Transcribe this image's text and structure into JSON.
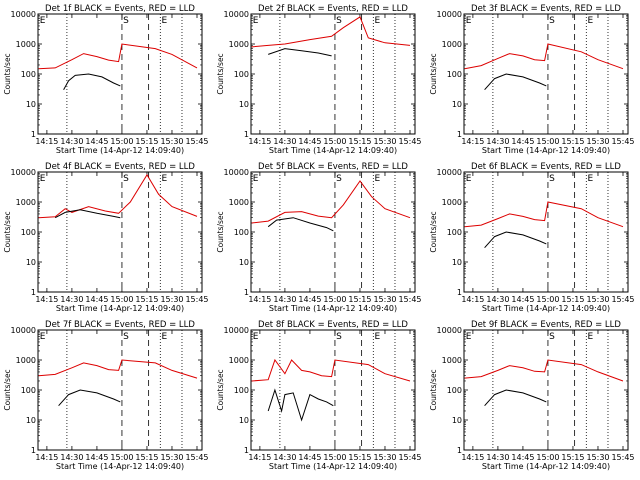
{
  "chart_data": [
    {
      "type": "line",
      "title": "Det 1f BLACK = Events, RED = LLD",
      "xlabel": "Start Time (14-Apr-12 14:09:40)",
      "ylabel": "Counts/sec",
      "x_ticks": [
        "14:15",
        "14:30",
        "14:45",
        "15:00",
        "15:15",
        "15:30",
        "15:45"
      ],
      "y_ticks": [
        "1",
        "10",
        "100",
        "1000",
        "10000"
      ],
      "yscale": "log",
      "ylim": [
        1,
        10000
      ],
      "markers": [
        {
          "label": "E",
          "at": "14:10"
        },
        {
          "label": "S",
          "at": "15:00"
        },
        {
          "label": "E",
          "at": "15:23"
        }
      ],
      "series": [
        {
          "color": "#dd0000",
          "points": [
            [
              "14:10",
              150
            ],
            [
              "14:20",
              160
            ],
            [
              "14:30",
              300
            ],
            [
              "14:37",
              480
            ],
            [
              "14:45",
              380
            ],
            [
              "14:52",
              290
            ],
            [
              "14:58",
              260
            ],
            [
              "15:00",
              1000
            ],
            [
              "15:20",
              700
            ],
            [
              "15:30",
              450
            ],
            [
              "15:45",
              160
            ]
          ]
        },
        {
          "color": "#000000",
          "points": [
            [
              "14:25",
              30
            ],
            [
              "14:28",
              60
            ],
            [
              "14:32",
              90
            ],
            [
              "14:40",
              100
            ],
            [
              "14:48",
              80
            ],
            [
              "14:55",
              50
            ],
            [
              "14:59",
              40
            ]
          ]
        }
      ]
    },
    {
      "type": "line",
      "title": "Det 2f BLACK = Events, RED = LLD",
      "xlabel": "Start Time (14-Apr-12 14:09:40)",
      "ylabel": "Counts/sec",
      "x_ticks": [
        "14:15",
        "14:30",
        "14:45",
        "15:00",
        "15:15",
        "15:30",
        "15:45"
      ],
      "y_ticks": [
        "1",
        "10",
        "100",
        "1000",
        "10000"
      ],
      "yscale": "log",
      "ylim": [
        1,
        10000
      ],
      "markers": [
        {
          "label": "E",
          "at": "14:10"
        },
        {
          "label": "S",
          "at": "15:00"
        },
        {
          "label": "E",
          "at": "15:23"
        }
      ],
      "series": [
        {
          "color": "#dd0000",
          "points": [
            [
              "14:10",
              800
            ],
            [
              "14:20",
              900
            ],
            [
              "14:30",
              1000
            ],
            [
              "14:45",
              1400
            ],
            [
              "14:58",
              1800
            ],
            [
              "15:05",
              3500
            ],
            [
              "15:15",
              8000
            ],
            [
              "15:20",
              1600
            ],
            [
              "15:30",
              1100
            ],
            [
              "15:45",
              900
            ]
          ]
        },
        {
          "color": "#000000",
          "points": [
            [
              "14:20",
              450
            ],
            [
              "14:30",
              700
            ],
            [
              "14:40",
              600
            ],
            [
              "14:50",
              500
            ],
            [
              "14:58",
              400
            ]
          ]
        }
      ]
    },
    {
      "type": "line",
      "title": "Det 3f BLACK = Events, RED = LLD",
      "xlabel": "Start Time (14-Apr-12 14:09:40)",
      "ylabel": "Counts/sec",
      "x_ticks": [
        "14:15",
        "14:30",
        "14:45",
        "15:00",
        "15:15",
        "15:30",
        "15:45"
      ],
      "y_ticks": [
        "1",
        "10",
        "100",
        "1000",
        "10000"
      ],
      "yscale": "log",
      "ylim": [
        1,
        10000
      ],
      "markers": [
        {
          "label": "E",
          "at": "14:10"
        },
        {
          "label": "S",
          "at": "15:00"
        },
        {
          "label": "E",
          "at": "15:23"
        }
      ],
      "series": [
        {
          "color": "#dd0000",
          "points": [
            [
              "14:10",
              150
            ],
            [
              "14:20",
              190
            ],
            [
              "14:30",
              330
            ],
            [
              "14:37",
              480
            ],
            [
              "14:45",
              400
            ],
            [
              "14:52",
              300
            ],
            [
              "14:58",
              280
            ],
            [
              "15:00",
              1000
            ],
            [
              "15:20",
              550
            ],
            [
              "15:30",
              300
            ],
            [
              "15:45",
              150
            ]
          ]
        },
        {
          "color": "#000000",
          "points": [
            [
              "14:22",
              30
            ],
            [
              "14:28",
              70
            ],
            [
              "14:35",
              100
            ],
            [
              "14:45",
              80
            ],
            [
              "14:55",
              50
            ],
            [
              "14:59",
              40
            ]
          ]
        }
      ]
    },
    {
      "type": "line",
      "title": "Det 4f BLACK = Events, RED = LLD",
      "xlabel": "Start Time (14-Apr-12 14:09:40)",
      "ylabel": "Counts/sec",
      "x_ticks": [
        "14:15",
        "14:30",
        "14:45",
        "15:00",
        "15:15",
        "15:30",
        "15:45"
      ],
      "y_ticks": [
        "1",
        "10",
        "100",
        "1000",
        "10000"
      ],
      "yscale": "log",
      "ylim": [
        1,
        10000
      ],
      "markers": [
        {
          "label": "E",
          "at": "14:10"
        },
        {
          "label": "S",
          "at": "15:00"
        },
        {
          "label": "E",
          "at": "15:23"
        }
      ],
      "series": [
        {
          "color": "#dd0000",
          "points": [
            [
              "14:10",
              300
            ],
            [
              "14:20",
              320
            ],
            [
              "14:26",
              600
            ],
            [
              "14:30",
              450
            ],
            [
              "14:40",
              700
            ],
            [
              "14:50",
              500
            ],
            [
              "14:58",
              420
            ],
            [
              "15:05",
              1000
            ],
            [
              "15:15",
              8000
            ],
            [
              "15:22",
              1800
            ],
            [
              "15:30",
              700
            ],
            [
              "15:45",
              330
            ]
          ]
        },
        {
          "color": "#000000",
          "points": [
            [
              "14:20",
              300
            ],
            [
              "14:26",
              450
            ],
            [
              "14:35",
              550
            ],
            [
              "14:45",
              420
            ],
            [
              "14:55",
              330
            ],
            [
              "14:59",
              300
            ]
          ]
        }
      ]
    },
    {
      "type": "line",
      "title": "Det 5f BLACK = Events, RED = LLD",
      "xlabel": "Start Time (14-Apr-12 14:09:40)",
      "ylabel": "Counts/sec",
      "x_ticks": [
        "14:15",
        "14:30",
        "14:45",
        "15:00",
        "15:15",
        "15:30",
        "15:45"
      ],
      "y_ticks": [
        "1",
        "10",
        "100",
        "1000",
        "10000"
      ],
      "yscale": "log",
      "ylim": [
        1,
        10000
      ],
      "markers": [
        {
          "label": "E",
          "at": "14:10"
        },
        {
          "label": "S",
          "at": "15:00"
        },
        {
          "label": "E",
          "at": "15:23"
        }
      ],
      "series": [
        {
          "color": "#dd0000",
          "points": [
            [
              "14:10",
              200
            ],
            [
              "14:20",
              230
            ],
            [
              "14:30",
              450
            ],
            [
              "14:40",
              480
            ],
            [
              "14:50",
              340
            ],
            [
              "14:58",
              300
            ],
            [
              "15:05",
              800
            ],
            [
              "15:15",
              5000
            ],
            [
              "15:22",
              1500
            ],
            [
              "15:30",
              600
            ],
            [
              "15:45",
              300
            ]
          ]
        },
        {
          "color": "#000000",
          "points": [
            [
              "14:20",
              150
            ],
            [
              "14:25",
              250
            ],
            [
              "14:35",
              300
            ],
            [
              "14:45",
              200
            ],
            [
              "14:55",
              140
            ],
            [
              "14:59",
              110
            ]
          ]
        }
      ]
    },
    {
      "type": "line",
      "title": "Det 6f BLACK = Events, RED = LLD",
      "xlabel": "Start Time (14-Apr-12 14:09:40)",
      "ylabel": "Counts/sec",
      "x_ticks": [
        "14:15",
        "14:30",
        "14:45",
        "15:00",
        "15:15",
        "15:30",
        "15:45"
      ],
      "y_ticks": [
        "1",
        "10",
        "100",
        "1000",
        "10000"
      ],
      "yscale": "log",
      "ylim": [
        1,
        10000
      ],
      "markers": [
        {
          "label": "E",
          "at": "14:10"
        },
        {
          "label": "S",
          "at": "15:00"
        },
        {
          "label": "E",
          "at": "15:23"
        }
      ],
      "series": [
        {
          "color": "#dd0000",
          "points": [
            [
              "14:10",
              150
            ],
            [
              "14:20",
              170
            ],
            [
              "14:30",
              280
            ],
            [
              "14:37",
              400
            ],
            [
              "14:45",
              330
            ],
            [
              "14:52",
              260
            ],
            [
              "14:58",
              240
            ],
            [
              "15:00",
              1000
            ],
            [
              "15:20",
              600
            ],
            [
              "15:30",
              300
            ],
            [
              "15:45",
              150
            ]
          ]
        },
        {
          "color": "#000000",
          "points": [
            [
              "14:22",
              30
            ],
            [
              "14:28",
              70
            ],
            [
              "14:35",
              100
            ],
            [
              "14:45",
              80
            ],
            [
              "14:55",
              50
            ],
            [
              "14:59",
              40
            ]
          ]
        }
      ]
    },
    {
      "type": "line",
      "title": "Det 7f BLACK = Events, RED = LLD",
      "xlabel": "Start Time (14-Apr-12 14:09:40)",
      "ylabel": "Counts/sec",
      "x_ticks": [
        "14:15",
        "14:30",
        "14:45",
        "15:00",
        "15:15",
        "15:30",
        "15:45"
      ],
      "y_ticks": [
        "1",
        "10",
        "100",
        "1000",
        "10000"
      ],
      "yscale": "log",
      "ylim": [
        1,
        10000
      ],
      "markers": [
        {
          "label": "E",
          "at": "14:10"
        },
        {
          "label": "S",
          "at": "15:00"
        },
        {
          "label": "E",
          "at": "15:23"
        }
      ],
      "series": [
        {
          "color": "#dd0000",
          "points": [
            [
              "14:10",
              300
            ],
            [
              "14:20",
              330
            ],
            [
              "14:30",
              550
            ],
            [
              "14:37",
              800
            ],
            [
              "14:45",
              650
            ],
            [
              "14:52",
              480
            ],
            [
              "14:58",
              450
            ],
            [
              "15:00",
              1000
            ],
            [
              "15:20",
              800
            ],
            [
              "15:30",
              450
            ],
            [
              "15:45",
              250
            ]
          ]
        },
        {
          "color": "#000000",
          "points": [
            [
              "14:22",
              30
            ],
            [
              "14:28",
              70
            ],
            [
              "14:35",
              100
            ],
            [
              "14:45",
              80
            ],
            [
              "14:55",
              50
            ],
            [
              "14:59",
              40
            ]
          ]
        }
      ]
    },
    {
      "type": "line",
      "title": "Det 8f BLACK = Events, RED = LLD",
      "xlabel": "Start Time (14-Apr-12 14:09:40)",
      "ylabel": "Counts/sec",
      "x_ticks": [
        "14:15",
        "14:30",
        "14:45",
        "15:00",
        "15:15",
        "15:30",
        "15:45"
      ],
      "y_ticks": [
        "1",
        "10",
        "100",
        "1000",
        "10000"
      ],
      "yscale": "log",
      "ylim": [
        1,
        10000
      ],
      "markers": [
        {
          "label": "E",
          "at": "14:10"
        },
        {
          "label": "S",
          "at": "15:00"
        },
        {
          "label": "E",
          "at": "15:23"
        }
      ],
      "series": [
        {
          "color": "#dd0000",
          "points": [
            [
              "14:10",
              200
            ],
            [
              "14:20",
              220
            ],
            [
              "14:24",
              1000
            ],
            [
              "14:30",
              350
            ],
            [
              "14:34",
              1000
            ],
            [
              "14:40",
              450
            ],
            [
              "14:45",
              400
            ],
            [
              "14:52",
              300
            ],
            [
              "14:58",
              280
            ],
            [
              "15:00",
              1000
            ],
            [
              "15:20",
              700
            ],
            [
              "15:30",
              350
            ],
            [
              "15:45",
              200
            ]
          ]
        },
        {
          "color": "#000000",
          "points": [
            [
              "14:20",
              20
            ],
            [
              "14:24",
              100
            ],
            [
              "14:28",
              20
            ],
            [
              "14:30",
              70
            ],
            [
              "14:35",
              80
            ],
            [
              "14:40",
              10
            ],
            [
              "14:45",
              70
            ],
            [
              "14:50",
              50
            ],
            [
              "14:55",
              40
            ],
            [
              "14:59",
              30
            ]
          ]
        }
      ]
    },
    {
      "type": "line",
      "title": "Det 9f BLACK = Events, RED = LLD",
      "xlabel": "Start Time (14-Apr-12 14:09:40)",
      "ylabel": "Counts/sec",
      "x_ticks": [
        "14:15",
        "14:30",
        "14:45",
        "15:00",
        "15:15",
        "15:30",
        "15:45"
      ],
      "y_ticks": [
        "1",
        "10",
        "100",
        "1000",
        "10000"
      ],
      "yscale": "log",
      "ylim": [
        1,
        10000
      ],
      "markers": [
        {
          "label": "E",
          "at": "14:10"
        },
        {
          "label": "S",
          "at": "15:00"
        },
        {
          "label": "E",
          "at": "15:23"
        }
      ],
      "series": [
        {
          "color": "#dd0000",
          "points": [
            [
              "14:10",
              250
            ],
            [
              "14:20",
              280
            ],
            [
              "14:30",
              450
            ],
            [
              "14:37",
              650
            ],
            [
              "14:45",
              550
            ],
            [
              "14:52",
              420
            ],
            [
              "14:58",
              400
            ],
            [
              "15:00",
              1000
            ],
            [
              "15:20",
              700
            ],
            [
              "15:30",
              400
            ],
            [
              "15:45",
              200
            ]
          ]
        },
        {
          "color": "#000000",
          "points": [
            [
              "14:22",
              30
            ],
            [
              "14:28",
              70
            ],
            [
              "14:35",
              100
            ],
            [
              "14:45",
              80
            ],
            [
              "14:55",
              50
            ],
            [
              "14:59",
              40
            ]
          ]
        }
      ]
    }
  ]
}
